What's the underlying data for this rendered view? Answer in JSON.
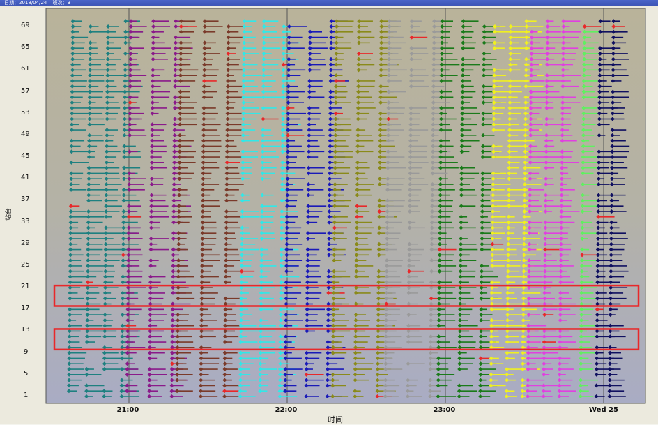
{
  "header": {
    "date_label": "日期：2018/04/24",
    "team_label": "班次：3"
  },
  "axes": {
    "ylabel": "站台",
    "xlabel": "时间"
  },
  "colors": {
    "highlight_box": "#e8282a",
    "plot_bg_top": "#b9b39a",
    "plot_bg_bottom": "#a9acc4"
  },
  "chart_data": {
    "type": "scatter",
    "title": "",
    "xlabel": "时间",
    "ylabel": "站台",
    "x_ticks": [
      "21:00",
      "22:00",
      "23:00",
      "Wed 25"
    ],
    "y_ticks": [
      1,
      5,
      9,
      13,
      17,
      21,
      25,
      29,
      33,
      37,
      41,
      45,
      49,
      53,
      57,
      61,
      65,
      69
    ],
    "ylim": [
      0,
      72
    ],
    "grid": "vertical-hour-lines",
    "highlight_bands": [
      {
        "y_from": 18,
        "y_to": 21
      },
      {
        "y_from": 10,
        "y_to": 13
      }
    ],
    "series": [
      {
        "color": "#1e8080",
        "x_start": "20:38",
        "x_end": "20:58",
        "columns": 4
      },
      {
        "color": "#8a1a8a",
        "x_start": "21:00",
        "x_end": "21:17",
        "columns": 3
      },
      {
        "color": "#7a3a2a",
        "x_start": "21:19",
        "x_end": "21:37",
        "columns": 3
      },
      {
        "color": "#30e8e8",
        "x_start": "21:43",
        "x_end": "21:58",
        "columns": 3
      },
      {
        "color": "#1a1ab8",
        "x_start": "22:00",
        "x_end": "22:16",
        "columns": 3
      },
      {
        "color": "#8a8a1a",
        "x_start": "22:18",
        "x_end": "22:35",
        "columns": 3
      },
      {
        "color": "#9a9a9a",
        "x_start": "22:38",
        "x_end": "22:55",
        "columns": 3
      },
      {
        "color": "#1a7a1a",
        "x_start": "22:58",
        "x_end": "23:14",
        "columns": 3
      },
      {
        "color": "#f0f020",
        "x_start": "23:18",
        "x_end": "23:30",
        "columns": 3
      },
      {
        "color": "#e040e0",
        "x_start": "23:32",
        "x_end": "23:44",
        "columns": 3
      },
      {
        "color": "#60f060",
        "x_start": "23:52",
        "x_end": "23:55",
        "columns": 1
      },
      {
        "color": "#101060",
        "x_start": "23:58",
        "x_end": "00:03",
        "columns": 2
      }
    ]
  }
}
